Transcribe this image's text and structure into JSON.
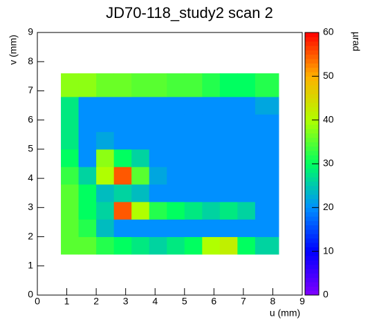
{
  "chart_data": {
    "type": "heatmap",
    "title": "JD70-118_study2 scan 2",
    "x_label": "u (mm)",
    "y_label": "v (mm)",
    "z_label": "µrad",
    "xlim": [
      0,
      9
    ],
    "xticks": [
      0,
      1,
      2,
      3,
      4,
      5,
      6,
      7,
      8,
      9
    ],
    "ylim": [
      0,
      9
    ],
    "yticks": [
      0,
      1,
      2,
      3,
      4,
      5,
      6,
      7,
      8,
      9
    ],
    "zlim": [
      0,
      60
    ],
    "zticks": [
      0,
      10,
      20,
      30,
      40,
      50,
      60
    ],
    "colormap": [
      "#8000ff",
      "#0000ff",
      "#0090ff",
      "#00ff60",
      "#b0ff00",
      "#ffb000",
      "#ff0000"
    ],
    "x_edges": [
      0.8,
      1.4,
      2.0,
      2.6,
      3.2,
      3.8,
      4.4,
      5.0,
      5.6,
      6.2,
      6.8,
      7.4,
      8.2
    ],
    "y_edges": [
      1.4,
      2.0,
      2.6,
      3.2,
      3.8,
      4.4,
      5.0,
      5.6,
      6.2,
      6.8,
      7.6
    ],
    "z": [
      [
        35,
        35,
        32,
        30,
        28,
        26,
        28,
        30,
        40,
        42,
        30,
        26
      ],
      [
        35,
        32,
        24,
        20,
        20,
        20,
        20,
        20,
        20,
        20,
        20,
        20
      ],
      [
        35,
        30,
        26,
        55,
        40,
        32,
        30,
        28,
        26,
        28,
        26,
        20
      ],
      [
        35,
        30,
        24,
        26,
        24,
        20,
        20,
        20,
        20,
        20,
        20,
        20
      ],
      [
        33,
        26,
        40,
        55,
        35,
        22,
        20,
        20,
        20,
        20,
        20,
        20
      ],
      [
        30,
        20,
        38,
        30,
        26,
        20,
        20,
        20,
        20,
        20,
        20,
        20
      ],
      [
        28,
        20,
        22,
        20,
        20,
        20,
        20,
        20,
        20,
        20,
        20,
        20
      ],
      [
        28,
        20,
        20,
        20,
        20,
        20,
        20,
        20,
        20,
        20,
        20,
        20
      ],
      [
        28,
        20,
        20,
        20,
        20,
        20,
        20,
        20,
        20,
        20,
        20,
        22
      ],
      [
        38,
        38,
        36,
        36,
        35,
        35,
        34,
        34,
        32,
        30,
        30,
        32
      ]
    ]
  }
}
